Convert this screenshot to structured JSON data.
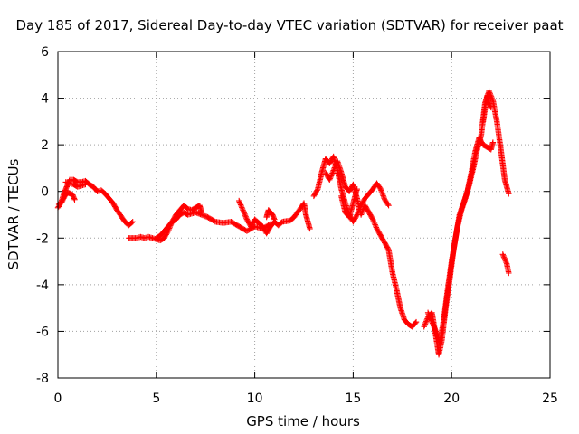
{
  "chart_data": {
    "type": "scatter",
    "title": "Day 185 of 2017, Sidereal Day-to-day VTEC variation (SDTVAR) for receiver paat",
    "xlabel": "GPS time / hours",
    "ylabel": "SDTVAR / TECUs",
    "xlim": [
      0,
      25
    ],
    "ylim": [
      -8,
      6
    ],
    "xticks": [
      0,
      5,
      10,
      15,
      20,
      25
    ],
    "yticks": [
      -8,
      -6,
      -4,
      -2,
      0,
      2,
      4,
      6
    ],
    "grid": true,
    "marker": "+",
    "color": "#ff0000",
    "series": [
      {
        "name": "SDTVAR",
        "segments": [
          [
            [
              0.0,
              -0.7
            ],
            [
              0.15,
              -0.5
            ],
            [
              0.3,
              -0.1
            ],
            [
              0.45,
              0.2
            ],
            [
              0.6,
              0.5
            ],
            [
              0.8,
              0.5
            ],
            [
              1.0,
              0.4
            ],
            [
              1.2,
              0.4
            ],
            [
              1.4,
              0.45
            ],
            [
              1.6,
              0.3
            ],
            [
              1.8,
              0.2
            ],
            [
              2.0,
              0.0
            ],
            [
              2.2,
              0.05
            ],
            [
              2.4,
              -0.1
            ],
            [
              2.6,
              -0.3
            ],
            [
              2.8,
              -0.5
            ],
            [
              3.0,
              -0.8
            ],
            [
              3.2,
              -1.05
            ],
            [
              3.4,
              -1.3
            ],
            [
              3.6,
              -1.45
            ],
            [
              3.8,
              -1.3
            ]
          ],
          [
            [
              0.05,
              -0.55
            ],
            [
              0.2,
              -0.45
            ],
            [
              0.35,
              -0.2
            ],
            [
              0.5,
              -0.05
            ],
            [
              0.65,
              -0.1
            ],
            [
              0.75,
              -0.15
            ],
            [
              0.85,
              -0.35
            ]
          ],
          [
            [
              0.4,
              0.4
            ],
            [
              0.6,
              0.35
            ],
            [
              0.8,
              0.3
            ],
            [
              1.0,
              0.2
            ],
            [
              1.2,
              0.25
            ],
            [
              1.4,
              0.3
            ]
          ],
          [
            [
              3.6,
              -2.0
            ],
            [
              3.8,
              -2.0
            ],
            [
              4.0,
              -2.0
            ],
            [
              4.2,
              -1.95
            ],
            [
              4.4,
              -2.0
            ],
            [
              4.6,
              -1.95
            ],
            [
              4.8,
              -2.0
            ],
            [
              5.0,
              -2.05
            ],
            [
              5.2,
              -2.1
            ],
            [
              5.4,
              -2.0
            ],
            [
              5.6,
              -1.7
            ],
            [
              5.8,
              -1.3
            ],
            [
              6.0,
              -1.0
            ],
            [
              6.2,
              -0.8
            ],
            [
              6.4,
              -0.6
            ],
            [
              6.6,
              -0.75
            ],
            [
              6.8,
              -0.8
            ],
            [
              7.0,
              -0.7
            ],
            [
              7.2,
              -0.6
            ],
            [
              7.3,
              -0.9
            ]
          ],
          [
            [
              5.0,
              -2.0
            ],
            [
              5.2,
              -1.9
            ],
            [
              5.4,
              -1.7
            ],
            [
              5.6,
              -1.5
            ],
            [
              5.8,
              -1.3
            ],
            [
              6.0,
              -1.2
            ],
            [
              6.2,
              -1.0
            ],
            [
              6.4,
              -0.9
            ],
            [
              6.6,
              -1.0
            ],
            [
              6.8,
              -0.95
            ],
            [
              7.0,
              -0.9
            ],
            [
              7.3,
              -1.0
            ],
            [
              7.6,
              -1.1
            ],
            [
              8.0,
              -1.3
            ],
            [
              8.4,
              -1.35
            ],
            [
              8.8,
              -1.3
            ],
            [
              9.2,
              -1.5
            ],
            [
              9.6,
              -1.7
            ],
            [
              10.0,
              -1.5
            ],
            [
              10.4,
              -1.6
            ],
            [
              10.8,
              -1.4
            ]
          ],
          [
            [
              9.2,
              -0.4
            ],
            [
              9.4,
              -0.8
            ],
            [
              9.6,
              -1.2
            ],
            [
              9.8,
              -1.5
            ],
            [
              10.0,
              -1.2
            ],
            [
              10.2,
              -1.35
            ],
            [
              10.4,
              -1.5
            ],
            [
              10.6,
              -1.8
            ],
            [
              10.8,
              -1.5
            ],
            [
              11.0,
              -1.3
            ],
            [
              11.2,
              -1.45
            ],
            [
              11.4,
              -1.3
            ],
            [
              11.8,
              -1.25
            ],
            [
              12.0,
              -1.1
            ],
            [
              12.3,
              -0.75
            ],
            [
              12.5,
              -0.5
            ],
            [
              12.6,
              -1.0
            ],
            [
              12.8,
              -1.6
            ]
          ],
          [
            [
              10.6,
              -1.1
            ],
            [
              10.7,
              -0.8
            ],
            [
              10.9,
              -1.0
            ],
            [
              11.0,
              -1.2
            ]
          ],
          [
            [
              13.0,
              -0.2
            ],
            [
              13.2,
              0.1
            ],
            [
              13.4,
              0.8
            ],
            [
              13.6,
              1.4
            ],
            [
              13.8,
              1.2
            ],
            [
              14.0,
              1.5
            ],
            [
              14.2,
              0.9
            ],
            [
              14.4,
              0.1
            ],
            [
              14.6,
              -0.5
            ],
            [
              14.8,
              -1.0
            ],
            [
              15.0,
              -1.3
            ],
            [
              15.2,
              -1.0
            ],
            [
              15.4,
              -0.6
            ],
            [
              15.6,
              -0.3
            ],
            [
              15.8,
              -0.1
            ],
            [
              16.0,
              0.1
            ],
            [
              16.2,
              0.35
            ],
            [
              16.4,
              0.1
            ],
            [
              16.6,
              -0.35
            ],
            [
              16.8,
              -0.6
            ]
          ],
          [
            [
              13.6,
              0.8
            ],
            [
              13.8,
              0.5
            ],
            [
              14.0,
              0.9
            ],
            [
              14.2,
              1.3
            ],
            [
              14.4,
              0.8
            ],
            [
              14.6,
              0.2
            ],
            [
              14.8,
              0.0
            ],
            [
              15.0,
              0.3
            ],
            [
              15.2,
              -0.3
            ],
            [
              15.4,
              -1.0
            ],
            [
              15.6,
              -0.6
            ],
            [
              15.8,
              -0.9
            ],
            [
              16.0,
              -1.2
            ],
            [
              16.2,
              -1.6
            ],
            [
              16.4,
              -1.9
            ],
            [
              16.6,
              -2.2
            ],
            [
              16.8,
              -2.5
            ],
            [
              17.0,
              -3.5
            ],
            [
              17.2,
              -4.2
            ],
            [
              17.4,
              -5.0
            ],
            [
              17.6,
              -5.5
            ],
            [
              17.8,
              -5.7
            ],
            [
              18.0,
              -5.8
            ],
            [
              18.2,
              -5.6
            ]
          ],
          [
            [
              14.4,
              -0.2
            ],
            [
              14.6,
              -0.9
            ],
            [
              14.8,
              -1.1
            ],
            [
              15.0,
              -0.5
            ],
            [
              15.2,
              0.1
            ]
          ],
          [
            [
              18.6,
              -5.8
            ],
            [
              18.8,
              -5.4
            ],
            [
              19.0,
              -5.2
            ],
            [
              19.2,
              -6.2
            ],
            [
              19.35,
              -7.0
            ],
            [
              19.5,
              -6.4
            ],
            [
              19.7,
              -5.0
            ],
            [
              19.9,
              -3.8
            ],
            [
              20.1,
              -2.5
            ],
            [
              20.3,
              -1.5
            ],
            [
              20.5,
              -0.8
            ],
            [
              20.7,
              -0.3
            ],
            [
              20.9,
              0.3
            ],
            [
              21.1,
              1.0
            ],
            [
              21.3,
              1.8
            ],
            [
              21.5,
              2.4
            ],
            [
              21.7,
              3.8
            ],
            [
              21.9,
              4.3
            ],
            [
              22.1,
              3.9
            ],
            [
              22.3,
              3.0
            ],
            [
              22.5,
              1.8
            ],
            [
              22.7,
              0.5
            ],
            [
              22.9,
              -0.1
            ]
          ],
          [
            [
              18.8,
              -5.2
            ],
            [
              19.0,
              -5.6
            ],
            [
              19.2,
              -6.0
            ],
            [
              19.4,
              -6.5
            ],
            [
              19.6,
              -5.5
            ],
            [
              19.8,
              -4.2
            ],
            [
              20.0,
              -3.0
            ],
            [
              20.2,
              -2.0
            ],
            [
              20.4,
              -1.0
            ],
            [
              20.6,
              -0.5
            ],
            [
              20.8,
              0.0
            ],
            [
              21.0,
              0.8
            ],
            [
              21.2,
              1.7
            ],
            [
              21.4,
              2.3
            ],
            [
              21.6,
              2.0
            ],
            [
              21.8,
              1.9
            ],
            [
              22.0,
              1.8
            ],
            [
              22.1,
              2.1
            ]
          ],
          [
            [
              21.6,
              3.0
            ],
            [
              21.8,
              4.1
            ],
            [
              22.0,
              3.6
            ]
          ],
          [
            [
              22.6,
              -2.7
            ],
            [
              22.8,
              -3.1
            ],
            [
              22.9,
              -3.5
            ]
          ]
        ]
      }
    ]
  }
}
